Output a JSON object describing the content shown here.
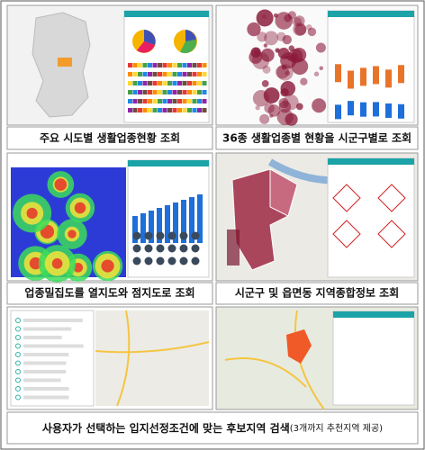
{
  "panels": [
    {
      "caption": "주요 시도별 생활업종현황 조회"
    },
    {
      "caption": "36종 생활업종별 현황을 시군구별로 조회"
    },
    {
      "caption": "업종밀집도를 열지도와 점지도로 조회"
    },
    {
      "caption": "시군구 및 읍면동 지역종합정보 조회"
    },
    {
      "caption": "사용자가 선택하는 입지선정조건에 맞는 후보지역 검색",
      "note": "(3개까지 추천지역 제공)"
    }
  ]
}
